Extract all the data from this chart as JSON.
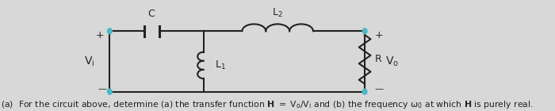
{
  "bg_color": "#d8d8d8",
  "circuit_color": "#222222",
  "node_color": "#4ab8c8",
  "text_color": "#222222",
  "fig_width": 7.0,
  "fig_height": 1.4,
  "dpi": 100
}
